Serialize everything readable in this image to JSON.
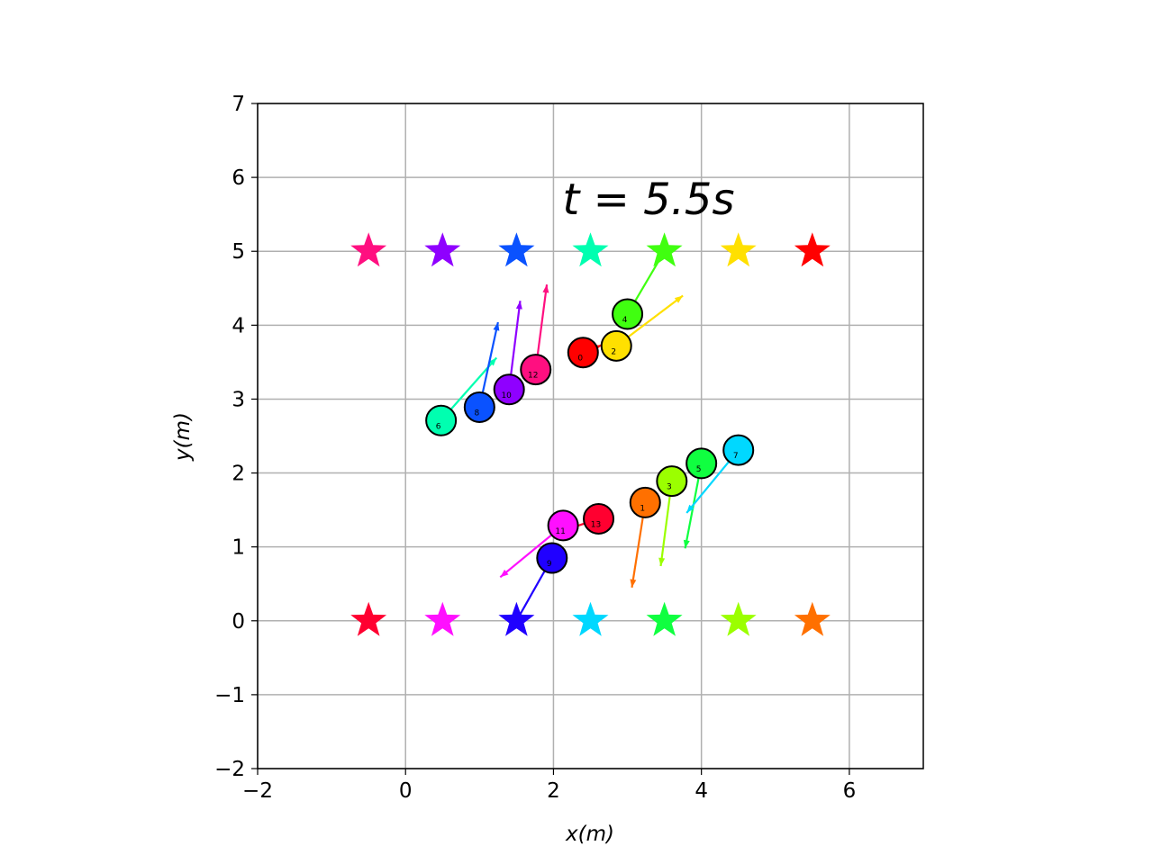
{
  "chart_data": {
    "type": "scatter",
    "title": "",
    "time_label": "t = 5.5s",
    "xlabel": "x(m)",
    "ylabel": "y(m)",
    "xlim": [
      -2,
      7
    ],
    "ylim": [
      -2,
      7
    ],
    "xticks": [
      -2,
      0,
      2,
      4,
      6
    ],
    "yticks": [
      -2,
      -1,
      0,
      1,
      2,
      3,
      4,
      5,
      6,
      7
    ],
    "xtick_labels": [
      "−2",
      "0",
      "2",
      "4",
      "6"
    ],
    "ytick_labels": [
      "−2",
      "−1",
      "0",
      "1",
      "2",
      "3",
      "4",
      "5",
      "6",
      "7"
    ],
    "grid": true,
    "goals": [
      {
        "x": -0.5,
        "y": 5,
        "color": "#ff0f80"
      },
      {
        "x": 0.5,
        "y": 5,
        "color": "#8f00ff"
      },
      {
        "x": 1.5,
        "y": 5,
        "color": "#0a52ff"
      },
      {
        "x": 2.5,
        "y": 5,
        "color": "#00ffb0"
      },
      {
        "x": 3.5,
        "y": 5,
        "color": "#40ff10"
      },
      {
        "x": 4.5,
        "y": 5,
        "color": "#ffe000"
      },
      {
        "x": 5.5,
        "y": 5,
        "color": "#ff0000"
      },
      {
        "x": -0.5,
        "y": 0,
        "color": "#ff0030"
      },
      {
        "x": 0.5,
        "y": 0,
        "color": "#ff10ff"
      },
      {
        "x": 1.5,
        "y": 0,
        "color": "#2000ff"
      },
      {
        "x": 2.5,
        "y": 0,
        "color": "#00d8ff"
      },
      {
        "x": 3.5,
        "y": 0,
        "color": "#10ff40"
      },
      {
        "x": 4.5,
        "y": 0,
        "color": "#9bff00"
      },
      {
        "x": 5.5,
        "y": 0,
        "color": "#ff7000"
      }
    ],
    "robots": [
      {
        "id": "0",
        "x": 2.4,
        "y": 3.63,
        "vx": 0.25,
        "vy": 0.1,
        "color": "#ff0000"
      },
      {
        "id": "2",
        "x": 2.85,
        "y": 3.72,
        "vx": 0.9,
        "vy": 0.68,
        "color": "#ffe000"
      },
      {
        "id": "4",
        "x": 3.0,
        "y": 4.15,
        "vx": 0.5,
        "vy": 0.85,
        "color": "#40ff10"
      },
      {
        "id": "6",
        "x": 0.48,
        "y": 2.71,
        "vx": 0.75,
        "vy": 0.85,
        "color": "#00ffb0"
      },
      {
        "id": "8",
        "x": 1.0,
        "y": 2.89,
        "vx": 0.25,
        "vy": 1.15,
        "color": "#0a52ff"
      },
      {
        "id": "10",
        "x": 1.4,
        "y": 3.13,
        "vx": 0.15,
        "vy": 1.2,
        "color": "#8f00ff"
      },
      {
        "id": "12",
        "x": 1.76,
        "y": 3.4,
        "vx": 0.15,
        "vy": 1.15,
        "color": "#ff0f80"
      },
      {
        "id": "1",
        "x": 3.24,
        "y": 1.6,
        "vx": -0.18,
        "vy": -1.15,
        "color": "#ff7000"
      },
      {
        "id": "3",
        "x": 3.6,
        "y": 1.89,
        "vx": -0.15,
        "vy": -1.15,
        "color": "#9bff00"
      },
      {
        "id": "5",
        "x": 4.0,
        "y": 2.13,
        "vx": -0.22,
        "vy": -1.15,
        "color": "#10ff40"
      },
      {
        "id": "7",
        "x": 4.5,
        "y": 2.31,
        "vx": -0.7,
        "vy": -0.85,
        "color": "#00d8ff"
      },
      {
        "id": "9",
        "x": 1.98,
        "y": 0.85,
        "vx": -0.48,
        "vy": -0.85,
        "color": "#2000ff"
      },
      {
        "id": "11",
        "x": 2.13,
        "y": 1.29,
        "vx": -0.85,
        "vy": -0.7,
        "color": "#ff10ff"
      },
      {
        "id": "13",
        "x": 2.61,
        "y": 1.38,
        "vx": -0.45,
        "vy": -0.15,
        "color": "#ff0030"
      }
    ]
  }
}
